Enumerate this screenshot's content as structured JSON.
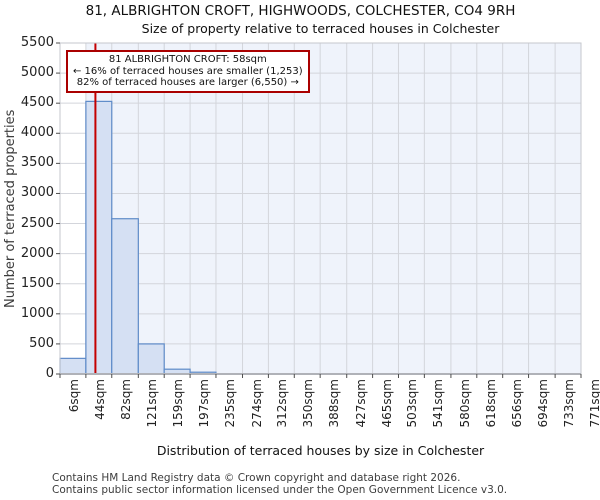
{
  "chart_data": {
    "type": "bar",
    "title": "81, ALBRIGHTON CROFT, HIGHWOODS, COLCHESTER, CO4 9RH",
    "subtitle": "Size of property relative to terraced houses in Colchester",
    "xlabel": "Distribution of terraced houses by size in Colchester",
    "ylabel": "Number of terraced properties",
    "bin_edges_sqm": [
      6,
      44,
      82,
      121,
      159,
      197,
      235,
      274,
      312,
      350,
      388,
      427,
      465,
      503,
      541,
      580,
      618,
      656,
      694,
      733,
      771
    ],
    "x_tick_labels": [
      "6sqm",
      "44sqm",
      "82sqm",
      "121sqm",
      "159sqm",
      "197sqm",
      "235sqm",
      "274sqm",
      "312sqm",
      "350sqm",
      "388sqm",
      "427sqm",
      "465sqm",
      "503sqm",
      "541sqm",
      "580sqm",
      "618sqm",
      "656sqm",
      "694sqm",
      "733sqm",
      "771sqm"
    ],
    "values": [
      260,
      4530,
      2580,
      500,
      80,
      30,
      0,
      0,
      0,
      0,
      0,
      0,
      0,
      0,
      0,
      0,
      0,
      0,
      0,
      0
    ],
    "xlim": [
      6,
      771
    ],
    "ylim": [
      0,
      5500
    ],
    "ytick_step": 500,
    "grid": true,
    "legend": null,
    "marker": {
      "value_sqm": 58,
      "color": "#c40000"
    },
    "highlight_region": {
      "from_sqm": 44,
      "to_sqm": 771
    },
    "annotation": {
      "lines": [
        "81 ALBRIGHTON CROFT: 58sqm",
        "← 16% of terraced houses are smaller (1,253)",
        "82% of terraced houses are larger (6,550) →"
      ]
    },
    "colors": {
      "bar_fill": "#d5e0f3",
      "bar_border": "#5e8bc8",
      "marker_line": "#c40000",
      "annotation_border": "#aa0000",
      "grid": "#d3d5db",
      "plot_border": "#c5c7cd",
      "axis_line": "#b0b2b8",
      "tick": "#4d4d4d",
      "highlight_fill": "#eff3fb",
      "plot_bg": "#ffffff"
    }
  },
  "footer": {
    "line1": "Contains HM Land Registry data © Crown copyright and database right 2026.",
    "line2": "Contains public sector information licensed under the Open Government Licence v3.0."
  }
}
